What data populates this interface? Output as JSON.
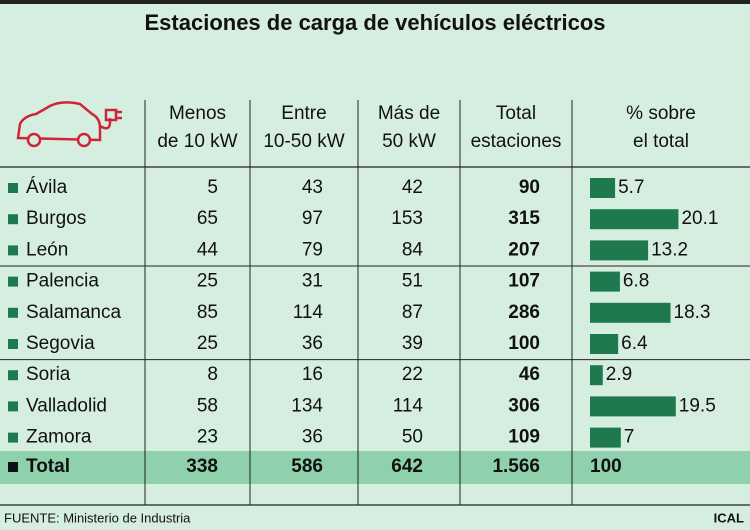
{
  "title": "Estaciones de carga de vehículos eléctricos",
  "table": {
    "headers": [
      [
        "Menos",
        "de 10 kW"
      ],
      [
        "Entre",
        "10-50 kW"
      ],
      [
        "Más de",
        "50 kW"
      ],
      [
        "Total",
        "estaciones"
      ],
      [
        "% sobre",
        "el total"
      ]
    ],
    "rows": [
      {
        "name": "Ávila",
        "values": [
          5,
          43,
          42
        ],
        "total": 90,
        "percent": 5.7
      },
      {
        "name": "Burgos",
        "values": [
          65,
          97,
          153
        ],
        "total": 315,
        "percent": 20.1
      },
      {
        "name": "León",
        "values": [
          44,
          79,
          84
        ],
        "total": 207,
        "percent": 13.2
      },
      {
        "name": "Palencia",
        "values": [
          25,
          31,
          51
        ],
        "total": 107,
        "percent": 6.8
      },
      {
        "name": "Salamanca",
        "values": [
          85,
          114,
          87
        ],
        "total": 286,
        "percent": 18.3
      },
      {
        "name": "Segovia",
        "values": [
          25,
          36,
          39
        ],
        "total": 100,
        "percent": 6.4
      },
      {
        "name": "Soria",
        "values": [
          8,
          16,
          22
        ],
        "total": 46,
        "percent": 2.9
      },
      {
        "name": "Valladolid",
        "values": [
          58,
          134,
          114
        ],
        "total": 306,
        "percent": 19.5
      },
      {
        "name": "Zamora",
        "values": [
          23,
          36,
          50
        ],
        "total": 109,
        "percent": 7
      }
    ],
    "total_row": {
      "name": "Total",
      "values": [
        338,
        586,
        642
      ],
      "total": {
        "value": 1566,
        "label": "1.566"
      },
      "percent": 100
    }
  },
  "source": "FUENTE: Ministerio de Industria",
  "credit": "ICAL"
}
